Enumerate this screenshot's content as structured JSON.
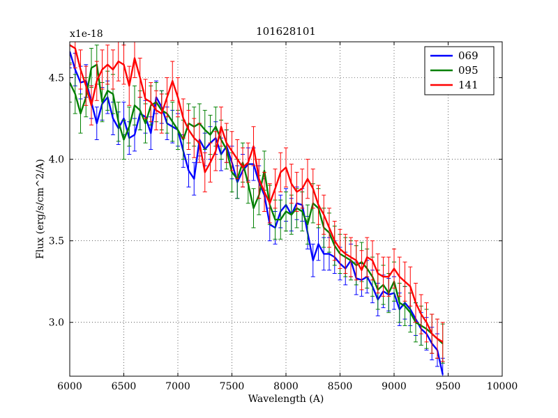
{
  "chart_data": {
    "type": "line",
    "title": "101628101",
    "xlabel": "Wavelength (A)",
    "ylabel": "Flux (erg/s/cm^2/A)",
    "offset_label": "x1e-18",
    "xlim": [
      6000,
      10000
    ],
    "ylim": [
      2.67,
      4.72
    ],
    "x_ticks": [
      6000,
      6500,
      7000,
      7500,
      8000,
      8500,
      9000,
      9500,
      10000
    ],
    "y_ticks": [
      3.0,
      3.5,
      4.0,
      4.5
    ],
    "x_tick_labels": [
      "6000",
      "6500",
      "7000",
      "7500",
      "8000",
      "8500",
      "9000",
      "9500",
      "10000"
    ],
    "y_tick_labels": [
      "3.0",
      "3.5",
      "4.0",
      "4.5"
    ],
    "grid": true,
    "legend_position": "top-right",
    "x": [
      6000,
      6050,
      6100,
      6150,
      6200,
      6250,
      6300,
      6350,
      6400,
      6450,
      6500,
      6550,
      6600,
      6650,
      6700,
      6750,
      6800,
      6850,
      6900,
      6950,
      7000,
      7050,
      7100,
      7150,
      7200,
      7250,
      7300,
      7350,
      7400,
      7450,
      7500,
      7550,
      7600,
      7650,
      7700,
      7750,
      7800,
      7850,
      7900,
      7950,
      8000,
      8050,
      8100,
      8150,
      8200,
      8250,
      8300,
      8350,
      8400,
      8450,
      8500,
      8550,
      8600,
      8650,
      8700,
      8750,
      8800,
      8850,
      8900,
      8950,
      9000,
      9050,
      9100,
      9150,
      9200,
      9250,
      9300,
      9350,
      9400,
      9450
    ],
    "series": [
      {
        "name": "069",
        "color": "#0000ff",
        "error": 0.1,
        "values": [
          4.66,
          4.55,
          4.47,
          4.48,
          4.35,
          4.22,
          4.34,
          4.38,
          4.25,
          4.19,
          4.25,
          4.13,
          4.15,
          4.28,
          4.26,
          4.16,
          4.38,
          4.32,
          4.22,
          4.2,
          4.18,
          4.05,
          3.93,
          3.88,
          4.12,
          4.06,
          4.1,
          4.13,
          4.03,
          4.08,
          3.98,
          3.86,
          3.93,
          3.97,
          3.97,
          3.86,
          3.78,
          3.6,
          3.58,
          3.68,
          3.72,
          3.66,
          3.73,
          3.72,
          3.55,
          3.38,
          3.48,
          3.42,
          3.42,
          3.4,
          3.36,
          3.33,
          3.38,
          3.27,
          3.26,
          3.28,
          3.22,
          3.14,
          3.19,
          3.17,
          3.18,
          3.08,
          3.12,
          3.08,
          3.02,
          2.96,
          2.93,
          2.87,
          2.83,
          2.68
        ]
      },
      {
        "name": "095",
        "color": "#008000",
        "error": 0.12,
        "values": [
          4.47,
          4.4,
          4.28,
          4.38,
          4.56,
          4.58,
          4.35,
          4.42,
          4.4,
          4.23,
          4.12,
          4.2,
          4.33,
          4.3,
          4.22,
          4.33,
          4.35,
          4.3,
          4.28,
          4.23,
          4.18,
          4.12,
          4.22,
          4.2,
          4.22,
          4.18,
          4.15,
          4.2,
          4.12,
          4.06,
          3.92,
          3.88,
          3.98,
          3.85,
          3.7,
          3.78,
          3.93,
          3.72,
          3.63,
          3.63,
          3.68,
          3.66,
          3.7,
          3.68,
          3.6,
          3.73,
          3.7,
          3.58,
          3.55,
          3.47,
          3.42,
          3.4,
          3.38,
          3.35,
          3.37,
          3.33,
          3.28,
          3.2,
          3.23,
          3.18,
          3.25,
          3.12,
          3.1,
          3.06,
          3.0,
          2.98,
          2.96,
          2.93,
          2.9,
          2.87
        ]
      },
      {
        "name": "141",
        "color": "#ff0000",
        "error": 0.12,
        "values": [
          4.7,
          4.68,
          4.55,
          4.45,
          4.33,
          4.48,
          4.55,
          4.58,
          4.55,
          4.6,
          4.58,
          4.45,
          4.62,
          4.5,
          4.37,
          4.35,
          4.3,
          4.28,
          4.38,
          4.48,
          4.38,
          4.25,
          4.18,
          4.13,
          4.1,
          3.92,
          3.98,
          4.05,
          4.2,
          4.1,
          4.05,
          4.0,
          3.95,
          3.98,
          4.08,
          3.88,
          3.8,
          3.73,
          3.82,
          3.92,
          3.95,
          3.85,
          3.8,
          3.82,
          3.88,
          3.82,
          3.72,
          3.66,
          3.58,
          3.5,
          3.45,
          3.42,
          3.4,
          3.38,
          3.32,
          3.4,
          3.38,
          3.3,
          3.28,
          3.28,
          3.33,
          3.28,
          3.25,
          3.22,
          3.12,
          3.05,
          3.0,
          2.93,
          2.9,
          2.88
        ]
      }
    ]
  }
}
